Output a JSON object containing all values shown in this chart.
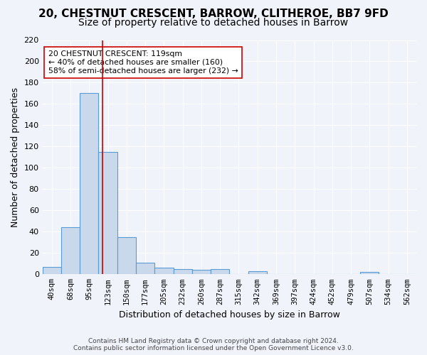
{
  "title": "20, CHESTNUT CRESCENT, BARROW, CLITHEROE, BB7 9FD",
  "subtitle": "Size of property relative to detached houses in Barrow",
  "xlabel": "Distribution of detached houses by size in Barrow",
  "ylabel": "Number of detached properties",
  "bar_values": [
    7,
    44,
    170,
    115,
    35,
    11,
    6,
    5,
    4,
    5,
    0,
    3,
    0,
    0,
    0,
    0,
    0,
    2,
    0,
    0
  ],
  "categories": [
    "40sqm",
    "68sqm",
    "95sqm",
    "123sqm",
    "150sqm",
    "177sqm",
    "205sqm",
    "232sqm",
    "260sqm",
    "287sqm",
    "315sqm",
    "342sqm",
    "369sqm",
    "397sqm",
    "424sqm",
    "452sqm",
    "479sqm",
    "507sqm",
    "534sqm",
    "562sqm"
  ],
  "bar_color": "#c9d9eb",
  "bar_edge_color": "#5b9bd5",
  "vline_x": 2.72,
  "vline_color": "#cc0000",
  "annotation_text": "20 CHESTNUT CRESCENT: 119sqm\n← 40% of detached houses are smaller (160)\n58% of semi-detached houses are larger (232) →",
  "annotation_box_color": "#ffffff",
  "annotation_box_edge": "#cc0000",
  "ylim": [
    0,
    220
  ],
  "yticks": [
    0,
    20,
    40,
    60,
    80,
    100,
    120,
    140,
    160,
    180,
    200,
    220
  ],
  "footer": "Contains HM Land Registry data © Crown copyright and database right 2024.\nContains public sector information licensed under the Open Government Licence v3.0.",
  "bg_color": "#f0f4fa",
  "grid_color": "#ffffff",
  "title_fontsize": 11,
  "subtitle_fontsize": 10,
  "tick_fontsize": 7.5,
  "ylabel_fontsize": 9,
  "xlabel_fontsize": 9
}
